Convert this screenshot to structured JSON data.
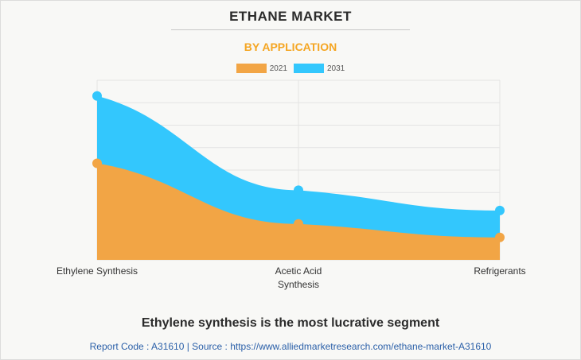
{
  "header": {
    "title": "ETHANE MARKET",
    "subtitle": "BY APPLICATION"
  },
  "headline": "Ethylene synthesis is the most lucrative segment",
  "footer": {
    "text": "Report Code : A31610  |  Source : https://www.alliedmarketresearch.com/ethane-market-A31610"
  },
  "colors": {
    "series_2021": "#f2a545",
    "series_2031": "#33c7fd",
    "subtitle": "#f5a623"
  },
  "chart_data": {
    "type": "area",
    "title": "ETHANE MARKET",
    "subtitle": "BY APPLICATION",
    "categories": [
      [
        "Ethylene Synthesis"
      ],
      [
        "Acetic Acid",
        "Synthesis"
      ],
      [
        "Refrigerants"
      ]
    ],
    "series": [
      {
        "name": "2021",
        "color": "#f2a545",
        "values": [
          4.3,
          1.6,
          1.0
        ]
      },
      {
        "name": "2031",
        "color": "#33c7fd",
        "values": [
          7.3,
          3.1,
          2.2
        ]
      }
    ],
    "ylim": [
      0,
      8
    ],
    "grid": true,
    "legend": "top-center",
    "xlabel": "",
    "ylabel": ""
  }
}
